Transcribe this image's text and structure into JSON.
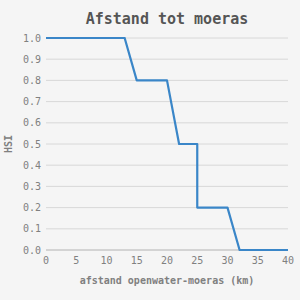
{
  "chart_data": {
    "type": "line",
    "title": "Afstand tot moeras",
    "xlabel": "afstand openwater-moeras (km)",
    "ylabel": "HSI",
    "x": [
      0,
      13,
      15,
      20,
      22,
      25,
      25,
      30,
      32,
      40
    ],
    "values": [
      1.0,
      1.0,
      0.8,
      0.8,
      0.5,
      0.5,
      0.2,
      0.2,
      0.0,
      0.0
    ],
    "color": "#3a86c8",
    "xlim": [
      0,
      40
    ],
    "ylim": [
      0.0,
      1.0
    ],
    "xticks": [
      0,
      5,
      10,
      15,
      20,
      25,
      30,
      35,
      40
    ],
    "yticks": [
      {
        "value": 0,
        "label": "0.0"
      },
      0.1,
      0.2,
      0.3,
      0.4,
      0.5,
      0.6,
      0.7,
      0.8,
      0.9,
      {
        "value": 1,
        "label": "1.0"
      }
    ],
    "grid": "y"
  }
}
